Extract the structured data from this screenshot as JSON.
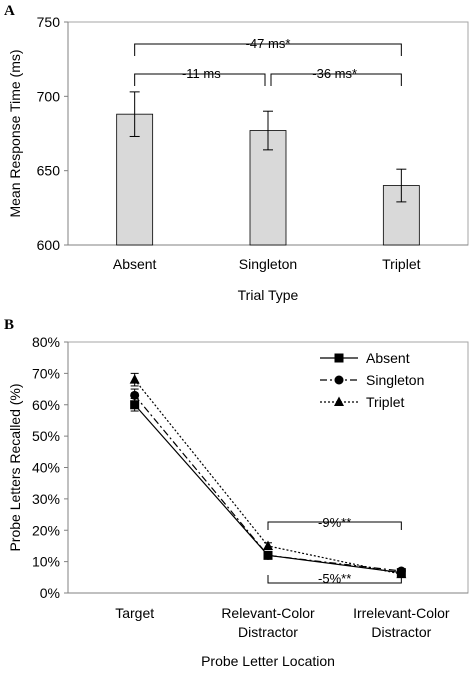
{
  "chart_data": [
    {
      "panel": "A",
      "type": "bar",
      "categories": [
        "Absent",
        "Singleton",
        "Triplet"
      ],
      "values": [
        688,
        677,
        640
      ],
      "error": [
        15,
        13,
        11
      ],
      "xlabel": "Trial Type",
      "ylabel": "Mean Response Time (ms)",
      "ylim": [
        600,
        750
      ],
      "yticks": [
        "600",
        "650",
        "700",
        "750"
      ],
      "bar_color": "#d9d9d9",
      "annotations": {
        "top": "-47 ms*",
        "left": "-11 ms",
        "right": "-36 ms*"
      }
    },
    {
      "panel": "B",
      "type": "line",
      "categories": [
        "Target",
        "Relevant-Color Distractor",
        "Irrelevant-Color Distractor"
      ],
      "category_lines": [
        [
          "Target"
        ],
        [
          "Relevant-Color",
          "Distractor"
        ],
        [
          "Irrelevant-Color",
          "Distractor"
        ]
      ],
      "series": [
        {
          "name": "Absent",
          "values": [
            60,
            12,
            6.5
          ],
          "error": [
            2,
            1,
            0.5
          ],
          "marker": "square",
          "line": "solid"
        },
        {
          "name": "Singleton",
          "values": [
            63,
            12,
            7
          ],
          "error": [
            2,
            1,
            0.5
          ],
          "marker": "circle",
          "line": "dashdot"
        },
        {
          "name": "Triplet",
          "values": [
            68,
            15,
            6
          ],
          "error": [
            2,
            1,
            0.5
          ],
          "marker": "triangle",
          "line": "dotted"
        }
      ],
      "xlabel": "Probe Letter Location",
      "ylabel": "Probe Letters Recalled (%)",
      "ylim": [
        0,
        80
      ],
      "yticks": [
        "0%",
        "10%",
        "20%",
        "30%",
        "40%",
        "50%",
        "60%",
        "70%",
        "80%"
      ],
      "legend": "top-right",
      "annotations": {
        "upper": "-9%**",
        "lower": "-5%**"
      }
    }
  ]
}
